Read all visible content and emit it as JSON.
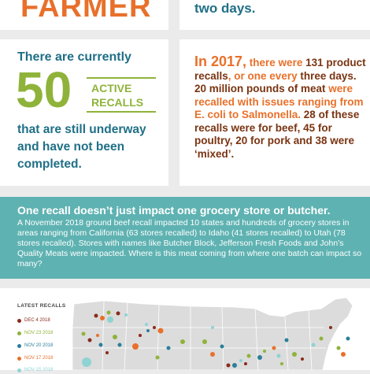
{
  "header": {
    "farmer_text": "FARMER",
    "two_days_text": "two days."
  },
  "active_recalls": {
    "intro": "There are currently",
    "number": "50",
    "badge_line1": "ACTIVE",
    "badge_line2": "RECALLS",
    "outro": "that are still underway and have not been completed."
  },
  "stats_2017": {
    "year": "In 2017,",
    "t1": " there were ",
    "n1": "131 product recalls",
    "t2": ", or one every ",
    "n2": "three days. 20 million pounds of meat",
    "t3": " were recalled with issues ranging from E. coli to Salmonella. ",
    "n3": "28 of these recalls were for beef, 45 for poultry, 20 for pork and 38 were ‘mixed’."
  },
  "grocery_section": {
    "title": "One recall doesn’t just impact one grocery store or butcher.",
    "body": "A November 2018 ground beef recall impacted 10 states and hundreds of grocery stores in areas ranging from California (63 stores recalled) to Idaho (41 stores recalled) to Utah (78 stores recalled). Stores with names like Butcher Block, Jefferson Fresh Foods and John’s Quality Meats were impacted. Where is this meat coming from where one batch can impact so many?"
  },
  "map": {
    "title": "LATEST RECALLS",
    "legend": [
      {
        "label": "DEC 4 2018",
        "color": "#8b2a1c"
      },
      {
        "label": "NOV 23 2018",
        "color": "#8fb33a"
      },
      {
        "label": "NOV 20 2018",
        "color": "#2a7f9a"
      },
      {
        "label": "NOV 17 2018",
        "color": "#e8702a"
      },
      {
        "label": "NOV 15 2018",
        "color": "#8fd3d3"
      }
    ],
    "colors": {
      "land": "#dcdcdc",
      "border": "#ffffff"
    }
  }
}
